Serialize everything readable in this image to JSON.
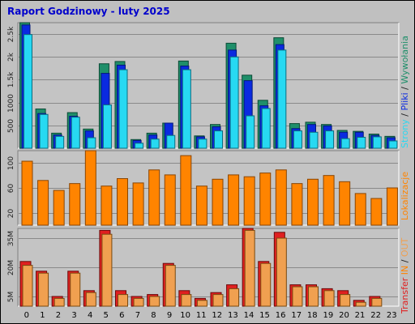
{
  "title": "Raport Godzinowy -  luty 2025",
  "colors": {
    "background": "#c0c0c0",
    "plot_bg": "#c4c4c4",
    "title": "#0000cc",
    "strony": "#1f8f6a",
    "pliki": "#0a2ae0",
    "wywolania": "#27d9f2",
    "lokalizacje": "#ff8400",
    "transfer_in": "#e02020",
    "transfer_out": "#f0a050"
  },
  "side_labels": {
    "top": {
      "strony": "Strony",
      "sep1": " / ",
      "pliki": "Pliki",
      "sep2": " / ",
      "wywolania": "Wywołania"
    },
    "middle": "Lokalizacje",
    "bottom": {
      "transfer": "Transfer",
      "in": " IN",
      "sep": " / ",
      "out": "OUT"
    }
  },
  "chart_data": [
    {
      "type": "bar",
      "categories": [
        "0",
        "1",
        "2",
        "3",
        "4",
        "5",
        "6",
        "7",
        "8",
        "9",
        "10",
        "11",
        "12",
        "13",
        "14",
        "15",
        "16",
        "17",
        "18",
        "19",
        "20",
        "21",
        "22",
        "23"
      ],
      "yticks": [
        {
          "v": 500,
          "label": "500"
        },
        {
          "v": 1000,
          "label": "1000"
        },
        {
          "v": 1500,
          "label": "1.5k"
        },
        {
          "v": 2000,
          "label": "2k"
        },
        {
          "v": 2500,
          "label": "2.5k"
        }
      ],
      "ylim": [
        0,
        2750
      ],
      "series": [
        {
          "name": "Strony",
          "values": [
            2750,
            860,
            330,
            780,
            420,
            1850,
            1900,
            190,
            330,
            550,
            1910,
            270,
            520,
            2300,
            1600,
            1050,
            2420,
            540,
            570,
            520,
            390,
            370,
            310,
            260
          ]
        },
        {
          "name": "Pliki",
          "values": [
            2700,
            760,
            290,
            700,
            380,
            1640,
            1820,
            170,
            290,
            550,
            1800,
            250,
            470,
            2150,
            1480,
            930,
            2270,
            430,
            520,
            490,
            350,
            350,
            280,
            230
          ]
        },
        {
          "name": "Wywołania",
          "values": [
            2490,
            740,
            260,
            680,
            230,
            950,
            1720,
            110,
            200,
            280,
            1720,
            200,
            380,
            2000,
            710,
            870,
            2150,
            380,
            350,
            380,
            210,
            240,
            250,
            160
          ]
        }
      ]
    },
    {
      "type": "bar",
      "categories": [
        "0",
        "1",
        "2",
        "3",
        "4",
        "5",
        "6",
        "7",
        "8",
        "9",
        "10",
        "11",
        "12",
        "13",
        "14",
        "15",
        "16",
        "17",
        "18",
        "19",
        "20",
        "21",
        "22",
        "23"
      ],
      "yticks": [
        {
          "v": 20,
          "label": "20"
        },
        {
          "v": 60,
          "label": "60"
        },
        {
          "v": 100,
          "label": "100"
        }
      ],
      "ylim": [
        0,
        120
      ],
      "series": [
        {
          "name": "Lokalizacje",
          "values": [
            103,
            72,
            56,
            67,
            120,
            63,
            75,
            68,
            89,
            81,
            112,
            63,
            74,
            81,
            78,
            84,
            89,
            67,
            74,
            80,
            70,
            51,
            43,
            60
          ]
        }
      ]
    },
    {
      "type": "bar",
      "categories": [
        "0",
        "1",
        "2",
        "3",
        "4",
        "5",
        "6",
        "7",
        "8",
        "9",
        "10",
        "11",
        "12",
        "13",
        "14",
        "15",
        "16",
        "17",
        "18",
        "19",
        "20",
        "21",
        "22",
        "23"
      ],
      "yticks": [
        {
          "v": 5,
          "label": "5M"
        },
        {
          "v": 20,
          "label": "20M"
        },
        {
          "v": 35,
          "label": "35M"
        }
      ],
      "ylim": [
        0,
        40
      ],
      "series": [
        {
          "name": "IN",
          "values": [
            23,
            18,
            5,
            18,
            8,
            39,
            8,
            5,
            6,
            22,
            8,
            4,
            7,
            11,
            40,
            23,
            38,
            11,
            11,
            9,
            8,
            3,
            5,
            0
          ]
        },
        {
          "name": "OUT",
          "values": [
            21,
            17,
            4,
            17,
            7,
            37,
            6,
            4,
            5,
            21,
            6,
            3,
            6,
            9,
            39,
            22,
            35,
            10,
            10,
            8,
            6,
            2,
            4,
            0
          ]
        }
      ]
    }
  ]
}
